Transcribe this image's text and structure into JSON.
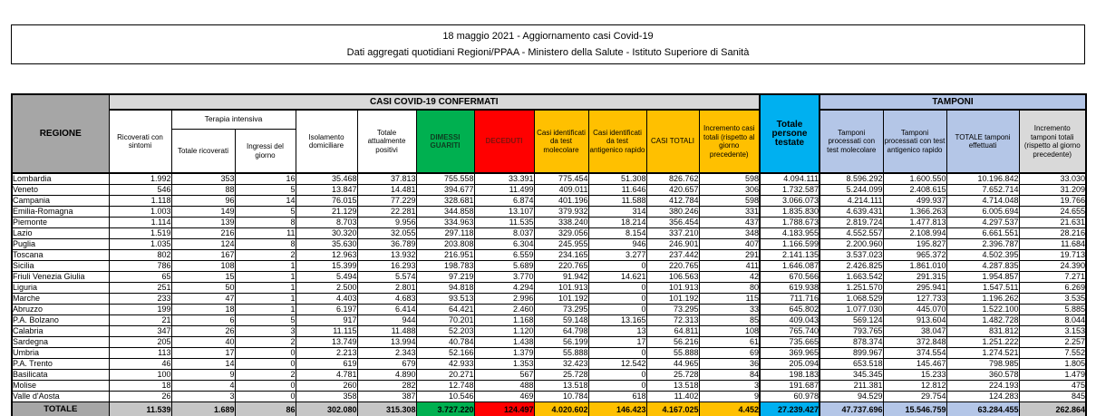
{
  "title": {
    "line1": "18 maggio 2021 - Aggiornamento casi Covid-19",
    "line2": "Dati aggregati quotidiani Regioni/PPAA - Ministero della Salute - Istituto Superiore di Sanità"
  },
  "colors": {
    "recovered_green": "#00B050",
    "deceased_red": "#FF0000",
    "cases_gold": "#FFC000",
    "tested_cyan": "#00B0F0",
    "swabs_blue": "#B4C6E7",
    "header_gray": "#A6A6A6",
    "banner_gray": "#D9D9D9",
    "total_gray": "#C6C6C6"
  },
  "table": {
    "banners": {
      "region": "REGIONE",
      "confirmed": "CASI COVID-19 CONFERMATI",
      "tested": "Totale persone testate",
      "tamponi": "TAMPONI"
    },
    "headers": {
      "ricoverati": "Ricoverati con sintomi",
      "terapia_intensiva": "Terapia intensiva",
      "ti_totale": "Totale ricoverati",
      "ti_ingressi": "Ingressi del giorno",
      "isolamento": "Isolamento domiciliare",
      "attualmente_positivi": "Totale attualmente positivi",
      "dimessi": "DIMESSI GUARITI",
      "deceduti": "DECEDUTI",
      "casi_molecolare": "Casi identificati da test molecolare",
      "casi_antigenico": "Casi identificati da test antigenico rapido",
      "casi_totali": "CASI TOTALI",
      "incremento_casi": "Incremento casi totali (rispetto al giorno precedente)",
      "tamponi_molecolare": "Tamponi processati con test molecolare",
      "tamponi_antigenico": "Tamponi processati con test antigenico rapido",
      "totale_tamponi": "TOTALE tamponi effettuati",
      "incremento_tamponi": "Incremento tamponi totali (rispetto al giorno precedente)"
    },
    "rows": [
      {
        "region": "Lombardia",
        "values": [
          "1.992",
          "353",
          "16",
          "35.468",
          "37.813",
          "755.558",
          "33.391",
          "775.454",
          "51.308",
          "826.762",
          "598",
          "4.094.111",
          "8.596.292",
          "1.600.550",
          "10.196.842",
          "33.030"
        ]
      },
      {
        "region": "Veneto",
        "values": [
          "546",
          "88",
          "5",
          "13.847",
          "14.481",
          "394.677",
          "11.499",
          "409.011",
          "11.646",
          "420.657",
          "306",
          "1.732.587",
          "5.244.099",
          "2.408.615",
          "7.652.714",
          "31.209"
        ]
      },
      {
        "region": "Campania",
        "values": [
          "1.118",
          "96",
          "14",
          "76.015",
          "77.229",
          "328.681",
          "6.874",
          "401.196",
          "11.588",
          "412.784",
          "598",
          "3.066.073",
          "4.214.111",
          "499.937",
          "4.714.048",
          "19.766"
        ]
      },
      {
        "region": "Emilia-Romagna",
        "values": [
          "1.003",
          "149",
          "5",
          "21.129",
          "22.281",
          "344.858",
          "13.107",
          "379.932",
          "314",
          "380.246",
          "331",
          "1.835.830",
          "4.639.431",
          "1.366.263",
          "6.005.694",
          "24.655"
        ]
      },
      {
        "region": "Piemonte",
        "values": [
          "1.114",
          "139",
          "8",
          "8.703",
          "9.956",
          "334.963",
          "11.535",
          "338.240",
          "18.214",
          "356.454",
          "437",
          "1.788.673",
          "2.819.724",
          "1.477.813",
          "4.297.537",
          "21.631"
        ]
      },
      {
        "region": "Lazio",
        "values": [
          "1.519",
          "216",
          "11",
          "30.320",
          "32.055",
          "297.118",
          "8.037",
          "329.056",
          "8.154",
          "337.210",
          "348",
          "4.183.955",
          "4.552.557",
          "2.108.994",
          "6.661.551",
          "28.216"
        ]
      },
      {
        "region": "Puglia",
        "values": [
          "1.035",
          "124",
          "8",
          "35.630",
          "36.789",
          "203.808",
          "6.304",
          "245.955",
          "946",
          "246.901",
          "407",
          "1.166.599",
          "2.200.960",
          "195.827",
          "2.396.787",
          "11.684"
        ]
      },
      {
        "region": "Toscana",
        "values": [
          "802",
          "167",
          "2",
          "12.963",
          "13.932",
          "216.951",
          "6.559",
          "234.165",
          "3.277",
          "237.442",
          "291",
          "2.141.135",
          "3.537.023",
          "965.372",
          "4.502.395",
          "19.713"
        ]
      },
      {
        "region": "Sicilia",
        "values": [
          "786",
          "108",
          "1",
          "15.399",
          "16.293",
          "198.783",
          "5.689",
          "220.765",
          "0",
          "220.765",
          "411",
          "1.646.087",
          "2.426.825",
          "1.861.010",
          "4.287.835",
          "24.390"
        ]
      },
      {
        "region": "Friuli Venezia Giulia",
        "values": [
          "65",
          "15",
          "1",
          "5.494",
          "5.574",
          "97.219",
          "3.770",
          "91.942",
          "14.621",
          "106.563",
          "42",
          "670.566",
          "1.663.542",
          "291.315",
          "1.954.857",
          "7.271"
        ]
      },
      {
        "region": "Liguria",
        "values": [
          "251",
          "50",
          "1",
          "2.500",
          "2.801",
          "94.818",
          "4.294",
          "101.913",
          "0",
          "101.913",
          "80",
          "619.938",
          "1.251.570",
          "295.941",
          "1.547.511",
          "6.269"
        ]
      },
      {
        "region": "Marche",
        "values": [
          "233",
          "47",
          "1",
          "4.403",
          "4.683",
          "93.513",
          "2.996",
          "101.192",
          "0",
          "101.192",
          "115",
          "711.716",
          "1.068.529",
          "127.733",
          "1.196.262",
          "3.535"
        ]
      },
      {
        "region": "Abruzzo",
        "values": [
          "199",
          "18",
          "1",
          "6.197",
          "6.414",
          "64.421",
          "2.460",
          "73.295",
          "0",
          "73.295",
          "33",
          "645.802",
          "1.077.030",
          "445.070",
          "1.522.100",
          "5.885"
        ]
      },
      {
        "region": "P.A. Bolzano",
        "values": [
          "21",
          "6",
          "5",
          "917",
          "944",
          "70.201",
          "1.168",
          "59.148",
          "13.165",
          "72.313",
          "85",
          "409.043",
          "569.124",
          "913.604",
          "1.482.728",
          "8.044"
        ]
      },
      {
        "region": "Calabria",
        "values": [
          "347",
          "26",
          "3",
          "11.115",
          "11.488",
          "52.203",
          "1.120",
          "64.798",
          "13",
          "64.811",
          "108",
          "765.740",
          "793.765",
          "38.047",
          "831.812",
          "3.153"
        ]
      },
      {
        "region": "Sardegna",
        "values": [
          "205",
          "40",
          "2",
          "13.749",
          "13.994",
          "40.784",
          "1.438",
          "56.199",
          "17",
          "56.216",
          "61",
          "735.665",
          "878.374",
          "372.848",
          "1.251.222",
          "2.257"
        ]
      },
      {
        "region": "Umbria",
        "values": [
          "113",
          "17",
          "0",
          "2.213",
          "2.343",
          "52.166",
          "1.379",
          "55.888",
          "0",
          "55.888",
          "69",
          "369.965",
          "899.967",
          "374.554",
          "1.274.521",
          "7.552"
        ]
      },
      {
        "region": "P.A. Trento",
        "values": [
          "46",
          "14",
          "0",
          "619",
          "679",
          "42.933",
          "1.353",
          "32.423",
          "12.542",
          "44.965",
          "36",
          "205.094",
          "653.518",
          "145.467",
          "798.985",
          "1.805"
        ]
      },
      {
        "region": "Basilicata",
        "values": [
          "100",
          "9",
          "2",
          "4.781",
          "4.890",
          "20.271",
          "567",
          "25.728",
          "0",
          "25.728",
          "84",
          "198.183",
          "345.345",
          "15.233",
          "360.578",
          "1.479"
        ]
      },
      {
        "region": "Molise",
        "values": [
          "18",
          "4",
          "0",
          "260",
          "282",
          "12.748",
          "488",
          "13.518",
          "0",
          "13.518",
          "3",
          "191.687",
          "211.381",
          "12.812",
          "224.193",
          "475"
        ]
      },
      {
        "region": "Valle d'Aosta",
        "values": [
          "26",
          "3",
          "0",
          "358",
          "387",
          "10.546",
          "469",
          "10.784",
          "618",
          "11.402",
          "9",
          "60.978",
          "94.529",
          "29.754",
          "124.283",
          "845"
        ]
      }
    ],
    "total": {
      "label": "TOTALE",
      "values": [
        "11.539",
        "1.689",
        "86",
        "302.080",
        "315.308",
        "3.727.220",
        "124.497",
        "4.020.602",
        "146.423",
        "4.167.025",
        "4.452",
        "27.239.427",
        "47.737.696",
        "15.546.759",
        "63.284.455",
        "262.864"
      ]
    }
  }
}
